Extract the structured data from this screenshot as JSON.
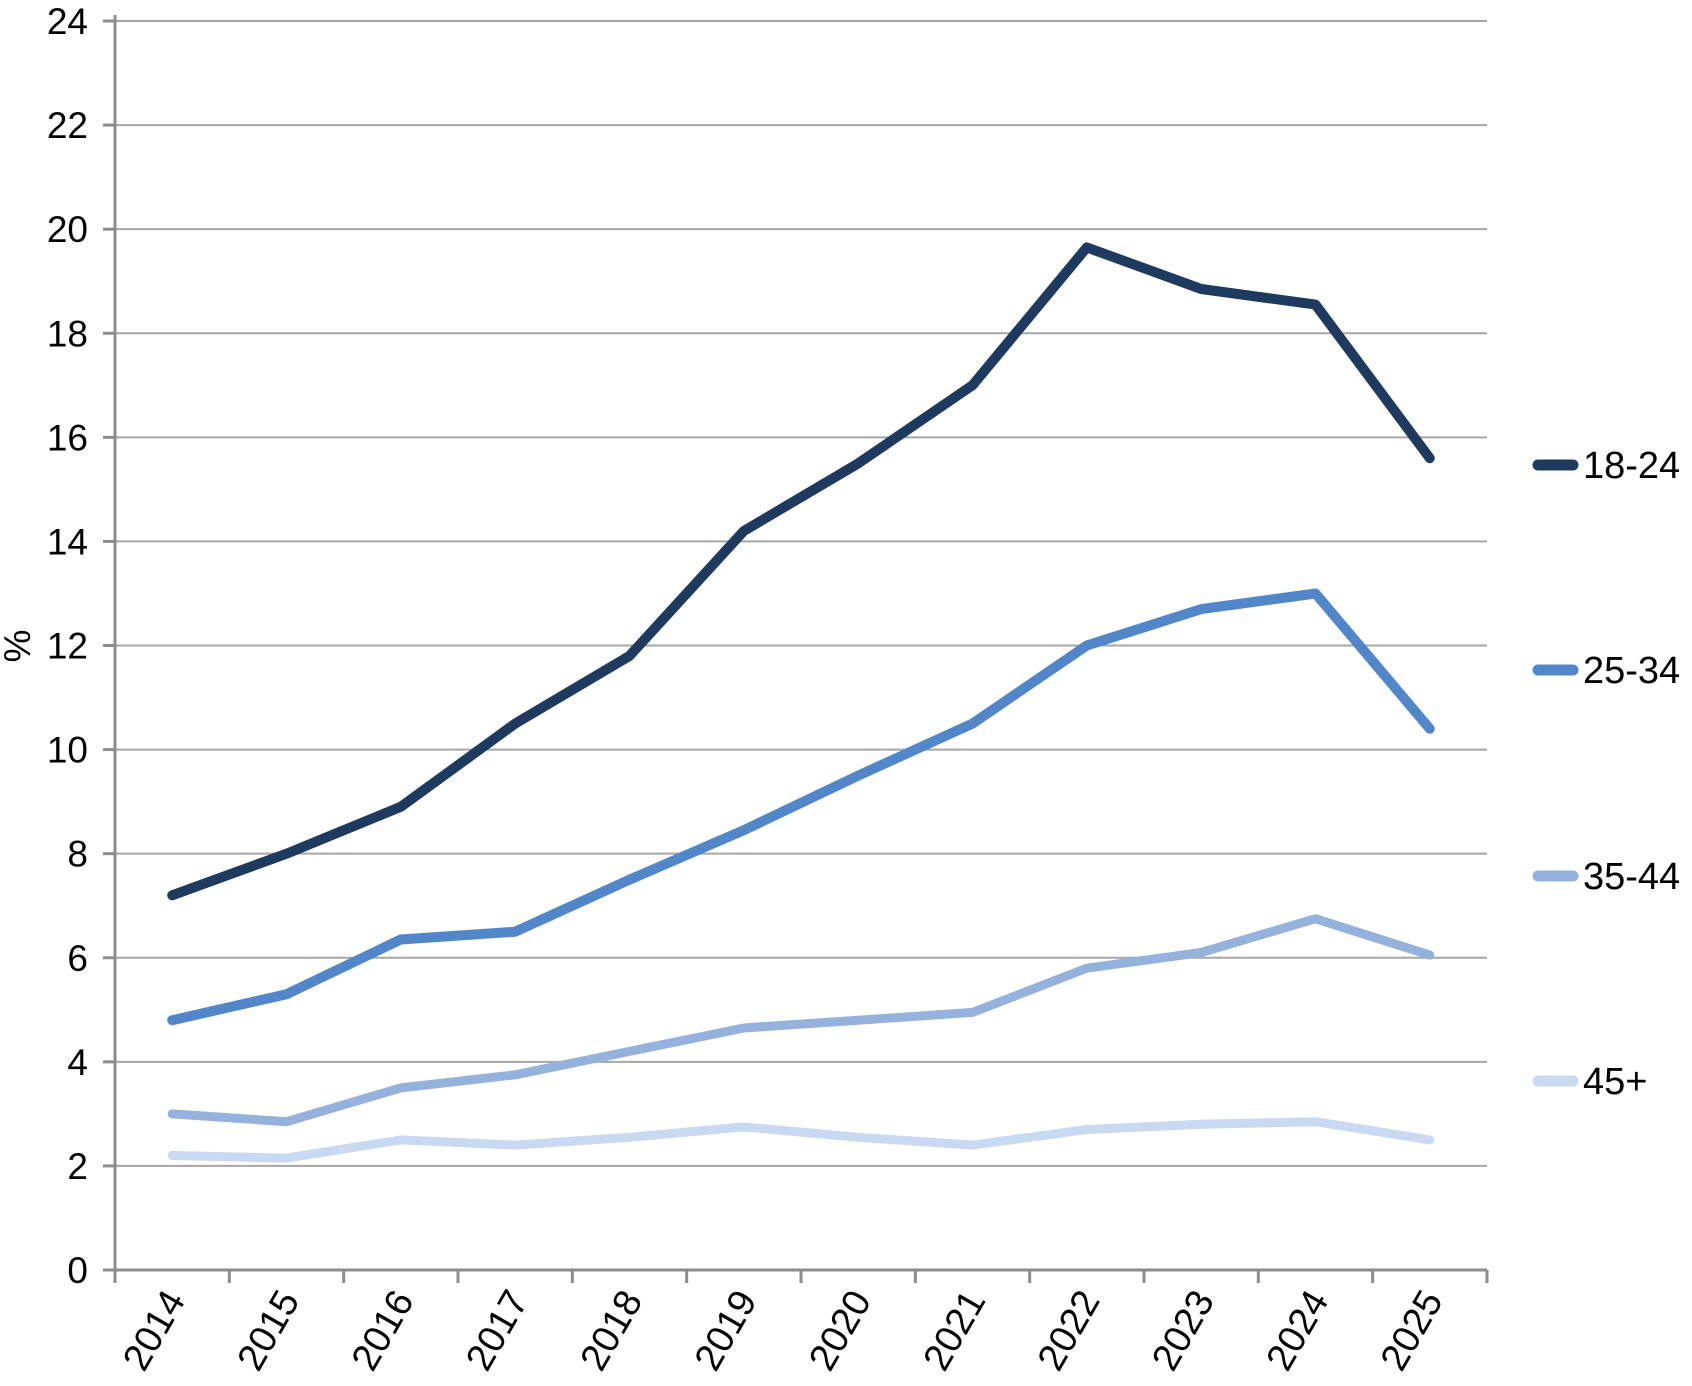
{
  "chart_data": {
    "type": "line",
    "title": "",
    "categories": [
      "2014",
      "2015",
      "2016",
      "2017",
      "2018",
      "2019",
      "2020",
      "2021",
      "2022",
      "2023",
      "2024",
      "2025"
    ],
    "series": [
      {
        "name": "18-24",
        "color": "#1F3A5F",
        "values": [
          7.2,
          8.0,
          8.9,
          10.5,
          11.8,
          14.2,
          15.5,
          17.0,
          19.65,
          18.85,
          18.55,
          15.6
        ]
      },
      {
        "name": "25-34",
        "color": "#5187C9",
        "values": [
          4.8,
          5.3,
          6.35,
          6.5,
          7.5,
          8.45,
          9.5,
          10.5,
          12.0,
          12.7,
          13.0,
          10.4
        ]
      },
      {
        "name": "35-44",
        "color": "#94B2DC",
        "values": [
          3.0,
          2.85,
          3.5,
          3.75,
          4.2,
          4.65,
          4.8,
          4.95,
          5.8,
          6.1,
          6.75,
          6.05
        ]
      },
      {
        "name": "45+",
        "color": "#C9D9F2",
        "values": [
          2.2,
          2.15,
          2.5,
          2.4,
          2.55,
          2.75,
          2.55,
          2.4,
          2.7,
          2.8,
          2.85,
          2.5
        ]
      }
    ],
    "xlabel": "",
    "ylabel": "%",
    "ylim": [
      0,
      24
    ],
    "ytick_step": 2,
    "y_ticks": [
      "0",
      "2",
      "4",
      "6",
      "8",
      "10",
      "12",
      "14",
      "16",
      "18",
      "20",
      "22",
      "24"
    ],
    "grid": true,
    "legend_position": "right"
  },
  "style": {
    "gridline_color": "#A6A6A6",
    "axis_color": "#8C8C8C",
    "text_color": "#000000",
    "background": "#FFFFFF"
  }
}
